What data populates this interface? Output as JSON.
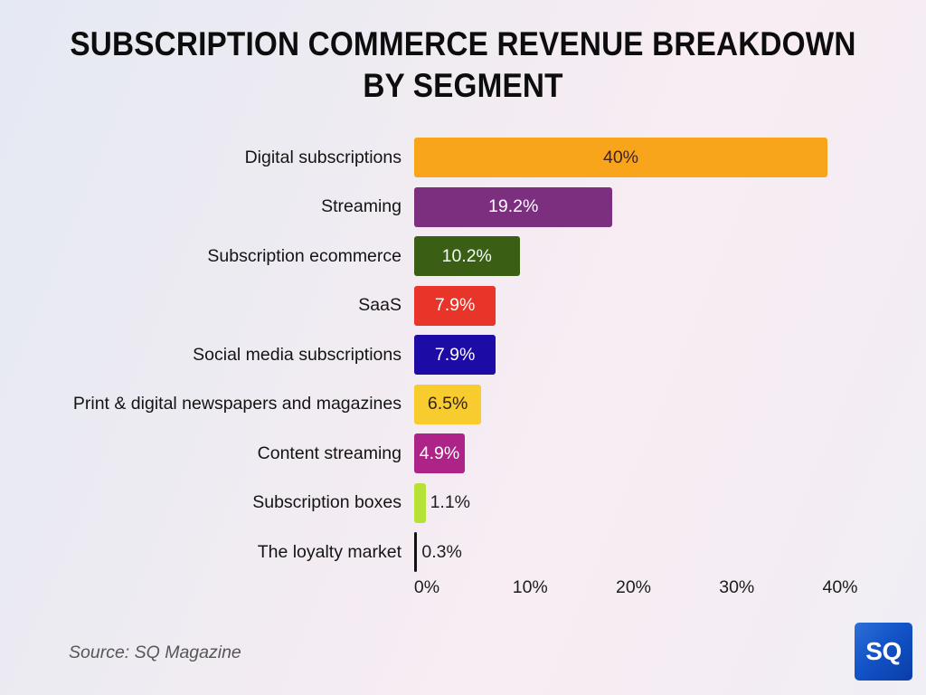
{
  "title": {
    "line1": "SUBSCRIPTION COMMERCE REVENUE BREAKDOWN",
    "line2": "BY SEGMENT"
  },
  "footer": {
    "source": "Source: SQ Magazine"
  },
  "logo": {
    "text": "SQ",
    "background": "#1254C8"
  },
  "chart_data": {
    "type": "bar",
    "orientation": "horizontal",
    "title": "Subscription Commerce Revenue Breakdown by Segment",
    "categories": [
      "Digital subscriptions",
      "Streaming",
      "Subscription ecommerce",
      "SaaS",
      "Social media subscriptions",
      "Print & digital newspapers and magazines",
      "Content streaming",
      "Subscription boxes",
      "The loyalty market"
    ],
    "values": [
      40,
      19.2,
      10.2,
      7.9,
      7.9,
      6.5,
      4.9,
      1.1,
      0.3
    ],
    "value_labels": [
      "40%",
      "19.2%",
      "10.2%",
      "7.9%",
      "7.9%",
      "6.5%",
      "4.9%",
      "1.1%",
      "0.3%"
    ],
    "bar_colors": [
      "#F9A51B",
      "#7C2E7F",
      "#3B5E15",
      "#E9342A",
      "#1D0BA5",
      "#F8CB2F",
      "#AE2388",
      "#B6E237",
      "#111111"
    ],
    "value_label_colors": [
      "#42231A",
      "#FFFFFF",
      "#F2FFF2",
      "#FFFFFF",
      "#FFFFFF",
      "#2B2420",
      "#FFFFFF",
      "#1D1D1D",
      "#1D1D1D"
    ],
    "value_label_inside": [
      true,
      true,
      true,
      true,
      true,
      true,
      true,
      false,
      false
    ],
    "xlabel": "",
    "ylabel": "",
    "xlim": [
      0,
      40
    ],
    "x_tick_labels": [
      "0%",
      "10%",
      "20%",
      "30%",
      "40%"
    ],
    "x_tick_values": [
      0,
      10,
      20,
      30,
      40
    ],
    "grid": false,
    "legend": false
  }
}
